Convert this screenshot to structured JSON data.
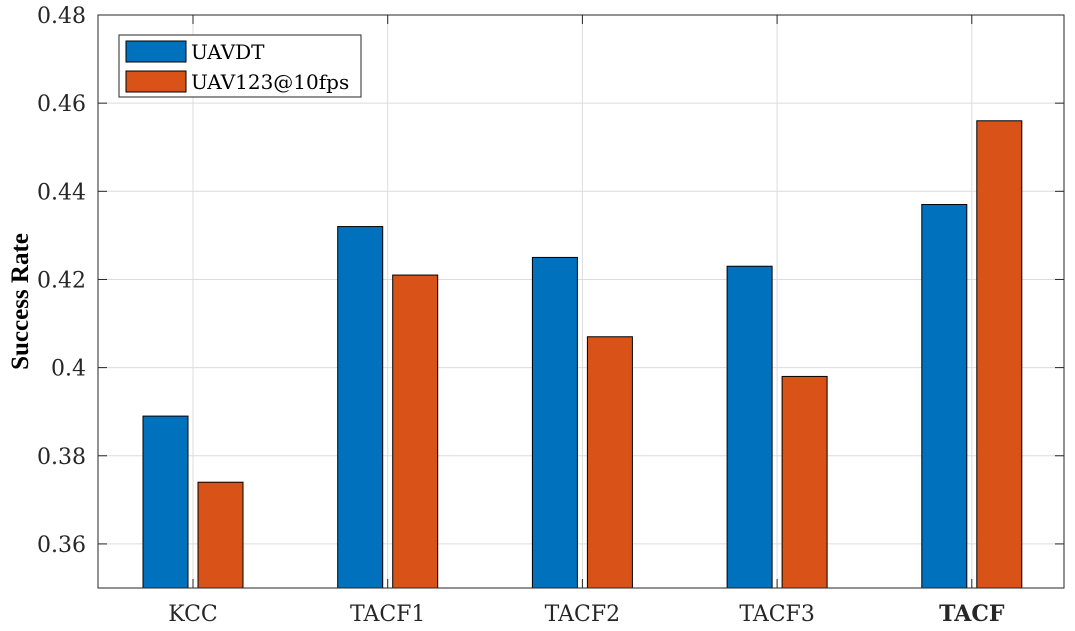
{
  "chart_data": {
    "type": "bar",
    "categories": [
      "KCC",
      "TACF1",
      "TACF2",
      "TACF3",
      "TACF"
    ],
    "bold_category": "TACF",
    "series": [
      {
        "name": "UAVDT",
        "color": "#0072BD",
        "values": [
          0.389,
          0.432,
          0.425,
          0.423,
          0.437
        ]
      },
      {
        "name": "UAV123@10fps",
        "color": "#D95319",
        "values": [
          0.374,
          0.421,
          0.407,
          0.398,
          0.456
        ]
      }
    ],
    "ylabel": "Success Rate",
    "xlabel": "",
    "ylim": [
      0.35,
      0.48
    ],
    "yticks": [
      0.36,
      0.38,
      0.4,
      0.42,
      0.44,
      0.46,
      0.48
    ],
    "ytick_labels": [
      "0.36",
      "0.38",
      "0.4",
      "0.42",
      "0.44",
      "0.46",
      "0.48"
    ],
    "grid": true,
    "legend_position": "top-left"
  }
}
